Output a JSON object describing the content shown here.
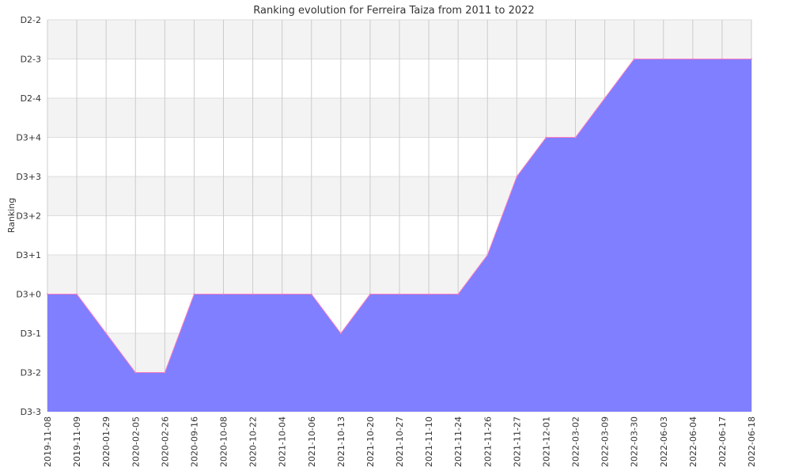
{
  "chart_data": {
    "type": "area",
    "title": "Ranking evolution for Ferreira Taiza from 2011 to 2022",
    "xlabel": "",
    "ylabel": "Ranking",
    "y_levels": [
      "D3-3",
      "D3-2",
      "D3-1",
      "D3+0",
      "D3+1",
      "D3+2",
      "D3+3",
      "D3+4",
      "D2-4",
      "D2-3",
      "D2-2"
    ],
    "x": [
      "2019-11-08",
      "2019-11-09",
      "2020-01-29",
      "2020-02-05",
      "2020-02-26",
      "2020-09-16",
      "2020-10-08",
      "2020-10-22",
      "2021-10-04",
      "2021-10-06",
      "2021-10-13",
      "2021-10-20",
      "2021-10-27",
      "2021-11-10",
      "2021-11-24",
      "2021-11-26",
      "2021-11-27",
      "2021-12-01",
      "2022-03-02",
      "2022-03-09",
      "2022-03-30",
      "2022-06-03",
      "2022-06-04",
      "2022-06-17",
      "2022-06-18"
    ],
    "series": [
      {
        "values": [
          "D3+0",
          "D3+0",
          "D3-1",
          "D3-2",
          "D3-2",
          "D3+0",
          "D3+0",
          "D3+0",
          "D3+0",
          "D3+0",
          "D3-1",
          "D3+0",
          "D3+0",
          "D3+0",
          "D3+0",
          "D3+1",
          "D3+3",
          "D3+4",
          "D3+4",
          "D2-4",
          "D2-3",
          "D2-3",
          "D2-3",
          "D2-3",
          "D2-3"
        ]
      }
    ],
    "colors": {
      "fill": "#7f7fff",
      "line": "#ff7fbf",
      "band": "#f3f3f3",
      "grid": "#dddddd"
    },
    "grid": true,
    "legend": "none"
  }
}
